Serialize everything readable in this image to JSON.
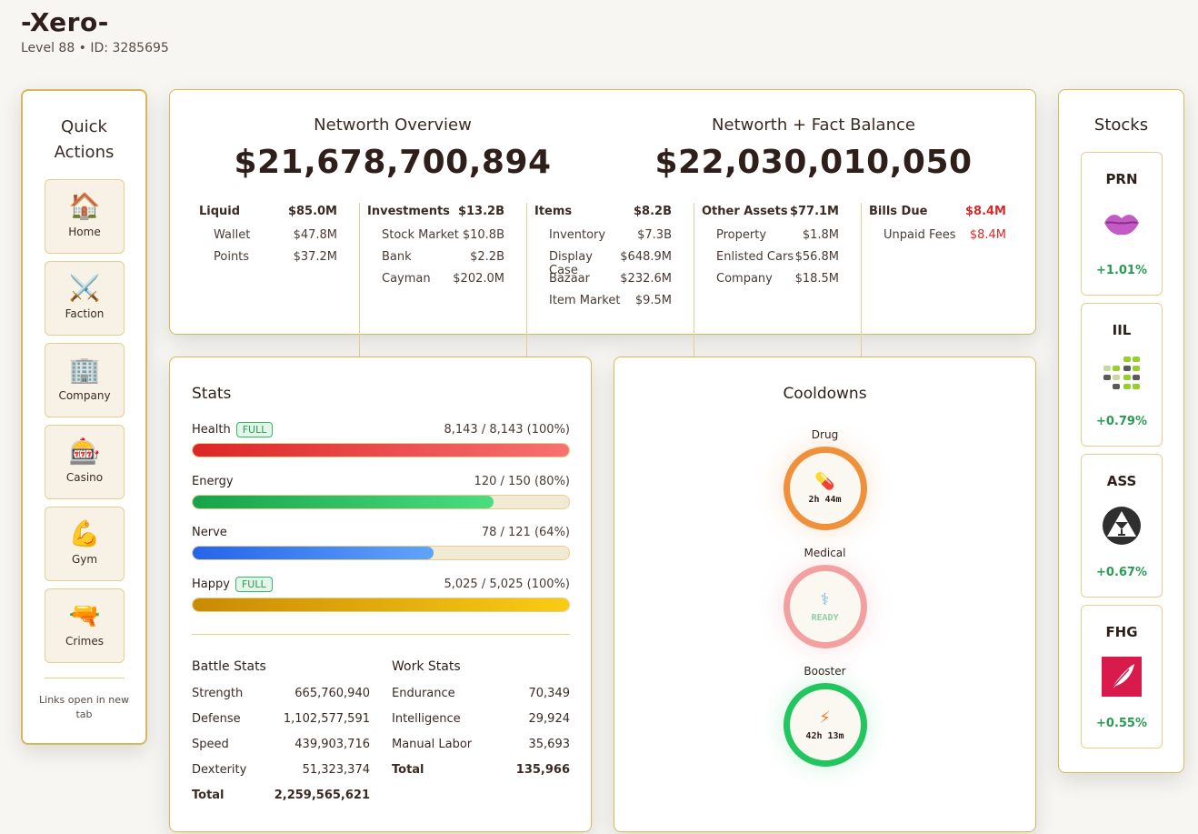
{
  "user": {
    "name": "-Xero-",
    "meta": "Level 88 • ID: 3285695"
  },
  "quick_actions": {
    "title": "Quick Actions",
    "items": [
      {
        "label": "Home",
        "icon": "🏠"
      },
      {
        "label": "Faction",
        "icon": "⚔️"
      },
      {
        "label": "Company",
        "icon": "🏢"
      },
      {
        "label": "Casino",
        "icon": "🎰"
      },
      {
        "label": "Gym",
        "icon": "💪"
      },
      {
        "label": "Crimes",
        "icon": "🔫"
      }
    ],
    "note": "Links open in new tab"
  },
  "networth": {
    "overview_title": "Networth Overview",
    "overview_value": "$21,678,700,894",
    "fact_title": "Networth + Fact Balance",
    "fact_value": "$22,030,010,050",
    "columns": [
      {
        "label": "Liquid",
        "value": "$85.0M",
        "rows": [
          {
            "label": "Wallet",
            "value": "$47.8M"
          },
          {
            "label": "Points",
            "value": "$37.2M"
          }
        ]
      },
      {
        "label": "Investments",
        "value": "$13.2B",
        "rows": [
          {
            "label": "Stock Market",
            "value": "$10.8B"
          },
          {
            "label": "Bank",
            "value": "$2.2B"
          },
          {
            "label": "Cayman",
            "value": "$202.0M"
          }
        ]
      },
      {
        "label": "Items",
        "value": "$8.2B",
        "rows": [
          {
            "label": "Inventory",
            "value": "$7.3B"
          },
          {
            "label": "Display Case",
            "value": "$648.9M"
          },
          {
            "label": "Bazaar",
            "value": "$232.6M"
          },
          {
            "label": "Item Market",
            "value": "$9.5M"
          }
        ]
      },
      {
        "label": "Other Assets",
        "value": "$77.1M",
        "rows": [
          {
            "label": "Property",
            "value": "$1.8M"
          },
          {
            "label": "Enlisted Cars",
            "value": "$56.8M"
          },
          {
            "label": "Company",
            "value": "$18.5M"
          }
        ]
      },
      {
        "label": "Bills Due",
        "value": "$8.4M",
        "rows": [
          {
            "label": "Unpaid Fees",
            "value": "$8.4M"
          }
        ]
      }
    ]
  },
  "stats": {
    "title": "Stats",
    "bars": [
      {
        "name": "Health",
        "badge": "FULL",
        "value": "8,143 / 8,143 (100%)",
        "fraction": 1.0,
        "color": "#e53935"
      },
      {
        "name": "Energy",
        "badge": "",
        "value": "120 / 150 (80%)",
        "fraction": 0.8,
        "color": "#22b455"
      },
      {
        "name": "Nerve",
        "badge": "",
        "value": "78 / 121 (64%)",
        "fraction": 0.64,
        "color": "#3b82e6"
      },
      {
        "name": "Happy",
        "badge": "FULL",
        "value": "5,025 / 5,025 (100%)",
        "fraction": 1.0,
        "color": "#e0a800"
      }
    ],
    "battle": {
      "title": "Battle Stats",
      "rows": [
        {
          "label": "Strength",
          "value": "665,760,940"
        },
        {
          "label": "Defense",
          "value": "1,102,577,591"
        },
        {
          "label": "Speed",
          "value": "439,903,716"
        },
        {
          "label": "Dexterity",
          "value": "51,323,374"
        }
      ],
      "total_label": "Total",
      "total_value": "2,259,565,621"
    },
    "work": {
      "title": "Work Stats",
      "rows": [
        {
          "label": "Endurance",
          "value": "70,349"
        },
        {
          "label": "Intelligence",
          "value": "29,924"
        },
        {
          "label": "Manual Labor",
          "value": "35,693"
        }
      ],
      "total_label": "Total",
      "total_value": "135,966"
    }
  },
  "cooldowns": {
    "title": "Cooldowns",
    "items": [
      {
        "label": "Drug",
        "icon": "💊",
        "text": "2h 44m",
        "color": "#f0903a"
      },
      {
        "label": "Medical",
        "icon": "⚕",
        "text": "READY",
        "color": "#f2a0a0"
      },
      {
        "label": "Booster",
        "icon": "⚡",
        "text": "42h 13m",
        "color": "#22c55e"
      }
    ]
  },
  "stocks": {
    "title": "Stocks",
    "items": [
      {
        "symbol": "PRN",
        "change": "+1.01%",
        "icon": "lips-icon"
      },
      {
        "symbol": "IIL",
        "change": "+0.79%",
        "icon": "blocks-icon"
      },
      {
        "symbol": "ASS",
        "change": "+0.67%",
        "icon": "cocktail-icon"
      },
      {
        "symbol": "FHG",
        "change": "+0.55%",
        "icon": "feather-icon"
      }
    ]
  }
}
